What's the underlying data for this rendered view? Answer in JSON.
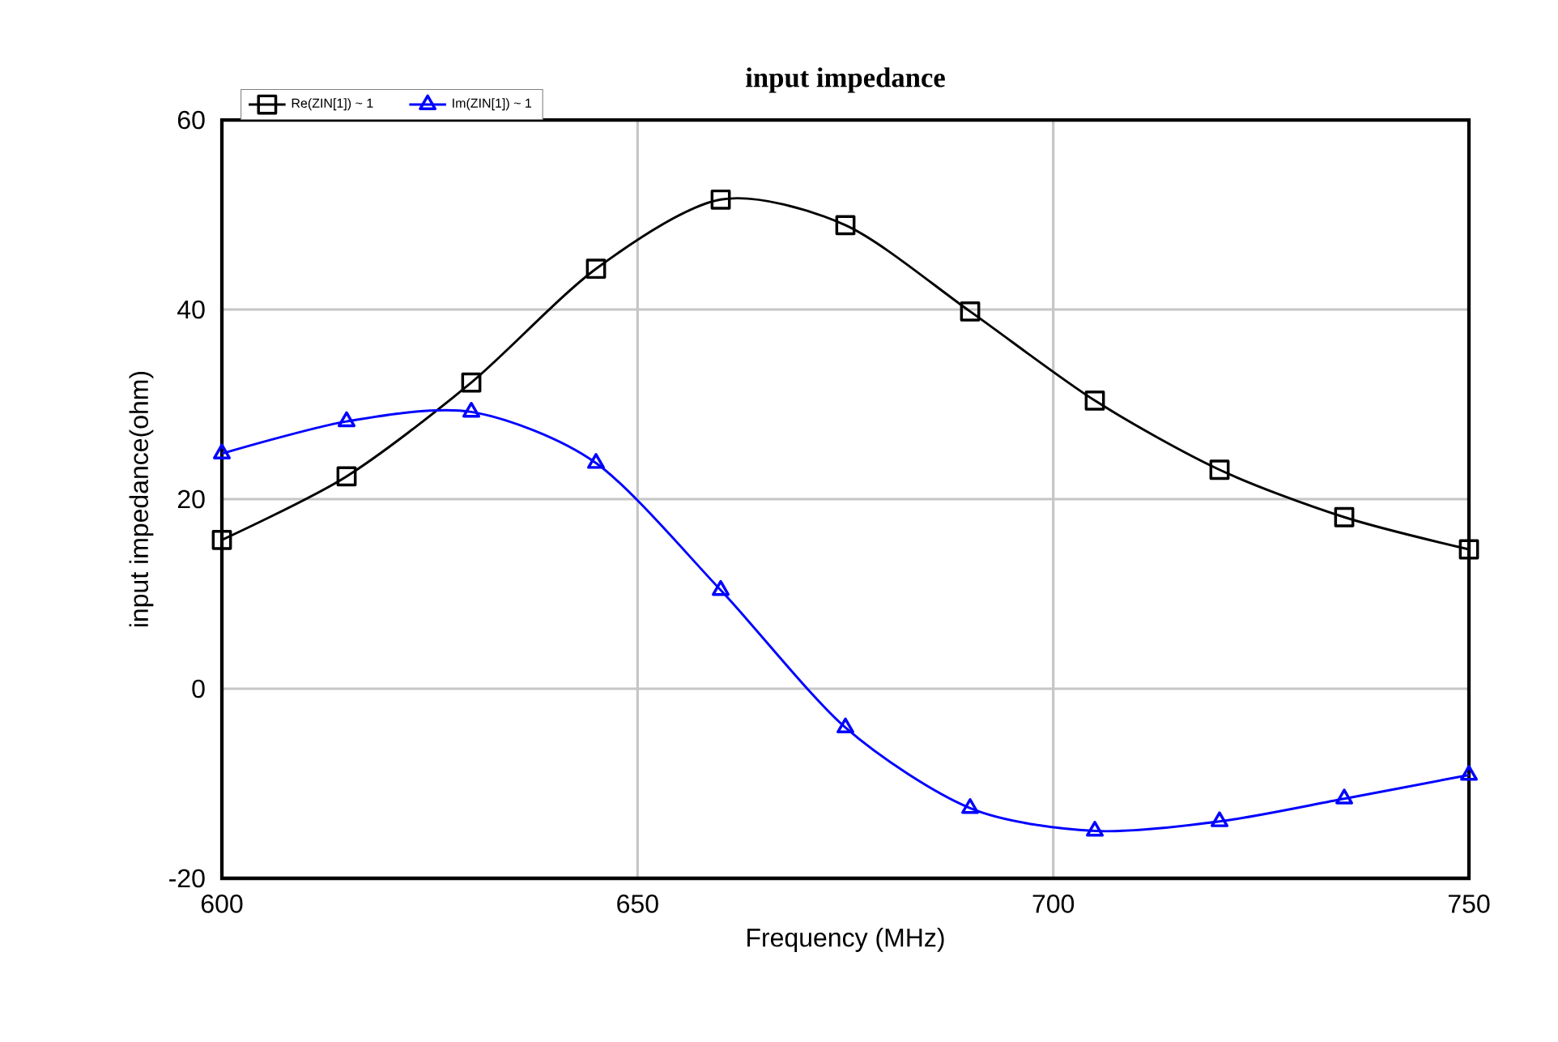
{
  "chart_data": {
    "type": "line",
    "title": "input impedance",
    "xlabel": "Frequency (MHz)",
    "ylabel": "input impedance(ohm)",
    "x": [
      600,
      615,
      630,
      645,
      660,
      675,
      690,
      705,
      720,
      735,
      750
    ],
    "series": [
      {
        "name": "Re(ZIN[1]) ~ 1",
        "color": "#000000",
        "marker": "square",
        "values": [
          15.7,
          22.4,
          32.3,
          44.3,
          51.6,
          48.9,
          39.8,
          30.4,
          23.1,
          18.1,
          14.7
        ]
      },
      {
        "name": "Im(ZIN[1]) ~ 1",
        "color": "#0000ff",
        "marker": "triangle",
        "values": [
          24.8,
          28.2,
          29.2,
          23.8,
          10.4,
          -4.1,
          -12.6,
          -15.0,
          -14.0,
          -11.6,
          -9.1
        ]
      }
    ],
    "xlim": [
      600,
      750
    ],
    "xticks": [
      600,
      650,
      700,
      750
    ],
    "ylim": [
      -20,
      60
    ],
    "yticks": [
      -20,
      0,
      20,
      40,
      60
    ],
    "grid": true,
    "legend": "top left",
    "line_style": "solid"
  }
}
